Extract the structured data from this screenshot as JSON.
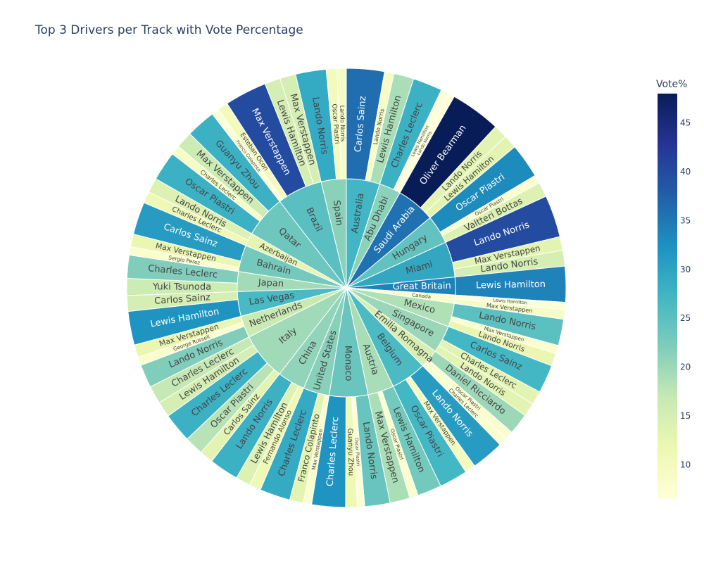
{
  "chart_data": {
    "type": "sunburst",
    "title": "Top 3 Drivers per Track with Vote Percentage",
    "colorbar": {
      "title": "Vote%",
      "ticks": [
        10,
        15,
        20,
        25,
        30,
        35,
        40,
        45
      ],
      "range": [
        6.5,
        48
      ]
    },
    "colorscale": [
      "#ffffd9",
      "#edf8b1",
      "#c7e9b4",
      "#7fcdbb",
      "#41b6c4",
      "#1d91c0",
      "#225ea8",
      "#253494",
      "#081d58"
    ],
    "tracks": [
      {
        "name": "Australia",
        "drivers": [
          {
            "name": "Carlos Sainz",
            "value": 36
          },
          {
            "name": "Lando Norris",
            "value": 9
          },
          {
            "name": "Lewis Hamilton",
            "value": 19
          }
        ]
      },
      {
        "name": "Abu Dhabi",
        "drivers": [
          {
            "name": "Charles Leclerc",
            "value": 28
          },
          {
            "name": "Lewis Hamilton",
            "value": 7
          },
          {
            "name": "Lando Norris",
            "value": 6.5
          }
        ]
      },
      {
        "name": "Saudi Arabia",
        "drivers": [
          {
            "name": "Oliver Bearman",
            "value": 48
          },
          {
            "name": "Lando Norris",
            "value": 13
          },
          {
            "name": "Lewis Hamilton",
            "value": 13
          }
        ]
      },
      {
        "name": "Hungary",
        "drivers": [
          {
            "name": "Oscar Piastri",
            "value": 33
          },
          {
            "name": "Oscar Piastri",
            "value": 8
          },
          {
            "name": "Valtteri Bottas",
            "value": 14
          }
        ]
      },
      {
        "name": "Miami",
        "drivers": [
          {
            "name": "Lando Norris",
            "value": 40
          },
          {
            "name": "Max Verstappen",
            "value": 13
          },
          {
            "name": "Lando Norris",
            "value": 15
          }
        ]
      },
      {
        "name": "Great Britain",
        "drivers": [
          {
            "name": "Lewis Hamilton",
            "value": 34
          }
        ]
      },
      {
        "name": "Canada",
        "drivers": [
          {
            "name": "Lewis Hamilton",
            "value": 7
          },
          {
            "name": "Max Verstappen",
            "value": 9
          }
        ]
      },
      {
        "name": "Mexico",
        "drivers": [
          {
            "name": "Lando Norris",
            "value": 25
          },
          {
            "name": "Max Verstappen",
            "value": 8
          },
          {
            "name": "Lando Norris",
            "value": 12
          }
        ]
      },
      {
        "name": "Singapore",
        "drivers": [
          {
            "name": "Carlos Sainz",
            "value": 27
          },
          {
            "name": "Charles Leclerc",
            "value": 13
          },
          {
            "name": "Lando Norris",
            "value": 13
          }
        ]
      },
      {
        "name": "Emilia Romagna",
        "drivers": [
          {
            "name": "Daniel Ricciardo",
            "value": 20
          },
          {
            "name": "Oscar Piastri",
            "value": 8
          },
          {
            "name": "Charles Leclerc",
            "value": 8
          }
        ]
      },
      {
        "name": "Belgium",
        "drivers": [
          {
            "name": "Lando Norris",
            "value": 31
          },
          {
            "name": "Max Verstappen",
            "value": 10
          },
          {
            "name": "Oscar Piastri",
            "value": 27
          }
        ]
      },
      {
        "name": "Austria",
        "drivers": [
          {
            "name": "Lewis Hamilton",
            "value": 23
          },
          {
            "name": "Oscar Piastri",
            "value": 8
          },
          {
            "name": "Max Verstappen",
            "value": 19
          }
        ]
      },
      {
        "name": "Monaco",
        "drivers": [
          {
            "name": "Lando Norris",
            "value": 24
          },
          {
            "name": "Oscar Piastri",
            "value": 7
          },
          {
            "name": "Guanyu Zhou",
            "value": 11
          },
          {
            "name": "Charles Leclerc",
            "value": 32
          }
        ]
      },
      {
        "name": "United States",
        "drivers": [
          {
            "name": "Max Verstappen",
            "value": 8
          },
          {
            "name": "Franco Colapinto",
            "value": 13
          },
          {
            "name": "Charles Leclerc",
            "value": 29
          }
        ]
      },
      {
        "name": "China",
        "drivers": [
          {
            "name": "Fernando Alonso",
            "value": 11
          },
          {
            "name": "Lewis Hamilton",
            "value": 14
          },
          {
            "name": "Lando Norris",
            "value": 28
          }
        ]
      },
      {
        "name": "Italy",
        "drivers": [
          {
            "name": "Carlos Sainz",
            "value": 13
          },
          {
            "name": "Oscar Piastri",
            "value": 18
          },
          {
            "name": "Charles Leclerc",
            "value": 28
          },
          {
            "name": "Lewis Hamilton",
            "value": 15
          },
          {
            "name": "Charles Leclerc",
            "value": 17
          }
        ]
      },
      {
        "name": "Netherlands",
        "drivers": [
          {
            "name": "Lando Norris",
            "value": 22
          },
          {
            "name": "George Russell",
            "value": 8
          },
          {
            "name": "Max Verstappen",
            "value": 12
          }
        ]
      },
      {
        "name": "Las Vegas",
        "drivers": [
          {
            "name": "Lewis Hamilton",
            "value": 32
          },
          {
            "name": "Carlos Sainz",
            "value": 15
          }
        ]
      },
      {
        "name": "Japan",
        "drivers": [
          {
            "name": "Yuki Tsunoda",
            "value": 16
          },
          {
            "name": "Charles Leclerc",
            "value": 22
          }
        ]
      },
      {
        "name": "Bahrain",
        "drivers": [
          {
            "name": "Sergio Perez",
            "value": 8
          },
          {
            "name": "Max Verstappen",
            "value": 12
          },
          {
            "name": "Carlos Sainz",
            "value": 31
          }
        ]
      },
      {
        "name": "Azerbaijan",
        "drivers": [
          {
            "name": "Charles Leclerc",
            "value": 11
          },
          {
            "name": "Lando Norris",
            "value": 14
          }
        ]
      },
      {
        "name": "Qatar",
        "drivers": [
          {
            "name": "Oscar Piastri",
            "value": 28
          },
          {
            "name": "Charles Leclerc",
            "value": 9
          },
          {
            "name": "Max Verstappen",
            "value": 16
          },
          {
            "name": "Guanyu Zhou",
            "value": 28
          }
        ]
      },
      {
        "name": "Brazil",
        "drivers": [
          {
            "name": "Franco Colapinto",
            "value": 7
          },
          {
            "name": "Esteban Ocon",
            "value": 10
          },
          {
            "name": "Max Verstappen",
            "value": 40
          },
          {
            "name": "Lewis Hamilton",
            "value": 15
          },
          {
            "name": "Max Verstappen",
            "value": 15
          }
        ]
      },
      {
        "name": "Spain",
        "drivers": [
          {
            "name": "Lando Norris",
            "value": 29
          },
          {
            "name": "Oscar Piastri",
            "value": 10
          },
          {
            "name": "Lando Norris",
            "value": 9
          }
        ]
      }
    ]
  }
}
